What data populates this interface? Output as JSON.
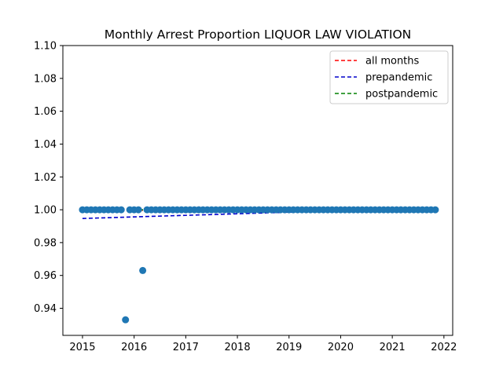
{
  "chart_data": {
    "type": "scatter",
    "title": "Monthly Arrest Proportion LIQUOR LAW VIOLATION",
    "xlabel": "",
    "ylabel": "",
    "xlim": [
      2014.62,
      2022.17
    ],
    "ylim": [
      0.9235,
      1.1
    ],
    "x_ticks": [
      2015,
      2016,
      2017,
      2018,
      2019,
      2020,
      2021,
      2022
    ],
    "x_tick_labels": [
      "2015",
      "2016",
      "2017",
      "2018",
      "2019",
      "2020",
      "2021",
      "2022"
    ],
    "y_ticks": [
      0.94,
      0.96,
      0.98,
      1.0,
      1.02,
      1.04,
      1.06,
      1.08,
      1.1
    ],
    "y_tick_labels": [
      "0.94",
      "0.96",
      "0.98",
      "1.00",
      "1.02",
      "1.04",
      "1.06",
      "1.08",
      "1.10"
    ],
    "grid": false,
    "legend_position": "top-right",
    "point_color": "#1f77b4",
    "points": {
      "start_year": 2015,
      "months": 83,
      "default_value": 1.0,
      "exceptions": [
        {
          "month_index": 10,
          "value": 0.933
        },
        {
          "month_index": 14,
          "value": 0.963
        }
      ]
    },
    "lines": [
      {
        "name": "all months",
        "color": "#ff0000",
        "style": "dashed",
        "x": [
          2015.0,
          2021.83
        ],
        "y": [
          0.9995,
          1.0005
        ]
      },
      {
        "name": "prepandemic",
        "color": "#0000cc",
        "style": "dashed",
        "x": [
          2015.0,
          2021.83
        ],
        "y": [
          0.9947,
          1.0012
        ]
      },
      {
        "name": "postpandemic",
        "color": "#008000",
        "style": "dashed",
        "x": [
          2015.0,
          2021.83
        ],
        "y": [
          1.0,
          1.0
        ]
      }
    ]
  }
}
